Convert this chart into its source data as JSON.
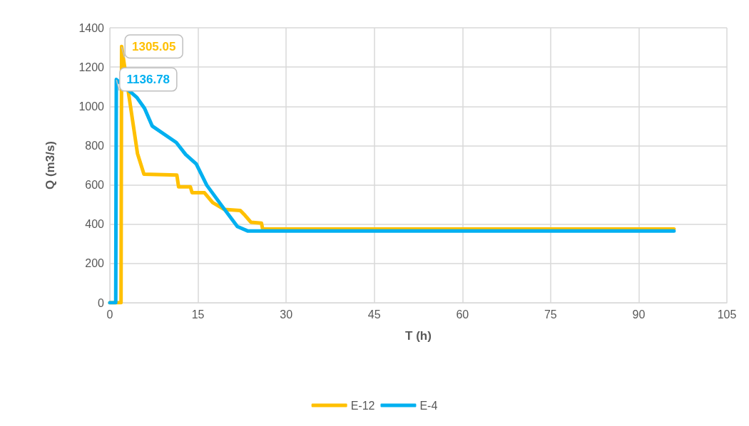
{
  "chart_data": {
    "type": "line",
    "xlabel": "T (h)",
    "ylabel": "Q (m3/s)",
    "xlim": [
      0,
      105
    ],
    "xticks": [
      0,
      15,
      30,
      45,
      60,
      75,
      90,
      105
    ],
    "ylim": [
      0,
      1400
    ],
    "yticks": [
      0,
      200,
      400,
      600,
      800,
      1000,
      1200,
      1400
    ],
    "grid": true,
    "legend": "bottom",
    "marker": "none",
    "line_style": "solid",
    "annotations": [
      {
        "text": "1305.05",
        "x": 2,
        "y": 1305.05
      },
      {
        "text": "1136.78",
        "x": 1.1,
        "y": 1136.78
      }
    ],
    "series": [
      {
        "name": "E-12",
        "color": "#ffc000",
        "x": [
          0,
          1.9,
          2,
          4.7,
          5.8,
          11.4,
          11.7,
          13.7,
          14,
          16.1,
          17.5,
          19.5,
          22.2,
          23,
          24,
          25.8,
          26,
          96
        ],
        "values": [
          0,
          0,
          1305.05,
          760,
          655,
          650,
          590,
          590,
          560,
          560,
          510,
          475,
          470,
          445,
          410,
          405,
          375,
          375
        ]
      },
      {
        "name": "E-4",
        "color": "#00b0f0",
        "x": [
          0,
          1,
          1.1,
          4.6,
          5.9,
          7.2,
          11.3,
          12.9,
          14.7,
          16.5,
          18.9,
          21.7,
          23.5,
          96
        ],
        "values": [
          0,
          0,
          1136.78,
          1045,
          990,
          900,
          816,
          755,
          707,
          598,
          500,
          388,
          365,
          365
        ]
      }
    ]
  }
}
